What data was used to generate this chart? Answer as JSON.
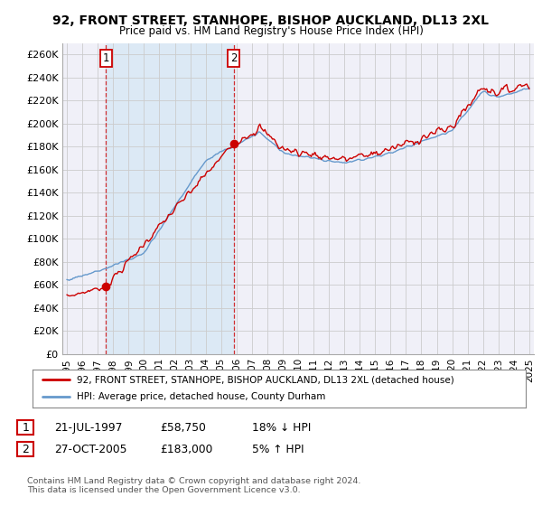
{
  "title": "92, FRONT STREET, STANHOPE, BISHOP AUCKLAND, DL13 2XL",
  "subtitle": "Price paid vs. HM Land Registry's House Price Index (HPI)",
  "ylabel_ticks": [
    "£0",
    "£20K",
    "£40K",
    "£60K",
    "£80K",
    "£100K",
    "£120K",
    "£140K",
    "£160K",
    "£180K",
    "£200K",
    "£220K",
    "£240K",
    "£260K"
  ],
  "ytick_values": [
    0,
    20000,
    40000,
    60000,
    80000,
    100000,
    120000,
    140000,
    160000,
    180000,
    200000,
    220000,
    240000,
    260000
  ],
  "ylim": [
    0,
    270000
  ],
  "sale1_date": 1997.54,
  "sale1_price": 58750,
  "sale1_label": "1",
  "sale2_date": 2005.82,
  "sale2_price": 183000,
  "sale2_label": "2",
  "legend_line1": "92, FRONT STREET, STANHOPE, BISHOP AUCKLAND, DL13 2XL (detached house)",
  "legend_line2": "HPI: Average price, detached house, County Durham",
  "table_row1": [
    "1",
    "21-JUL-1997",
    "£58,750",
    "18% ↓ HPI"
  ],
  "table_row2": [
    "2",
    "27-OCT-2005",
    "£183,000",
    "5% ↑ HPI"
  ],
  "footnote": "Contains HM Land Registry data © Crown copyright and database right 2024.\nThis data is licensed under the Open Government Licence v3.0.",
  "price_color": "#cc0000",
  "hpi_color": "#6699cc",
  "shade_color": "#dce9f5",
  "background_color": "#f0f0f8",
  "grid_color": "#cccccc",
  "xmin": 1994.7,
  "xmax": 2025.3
}
